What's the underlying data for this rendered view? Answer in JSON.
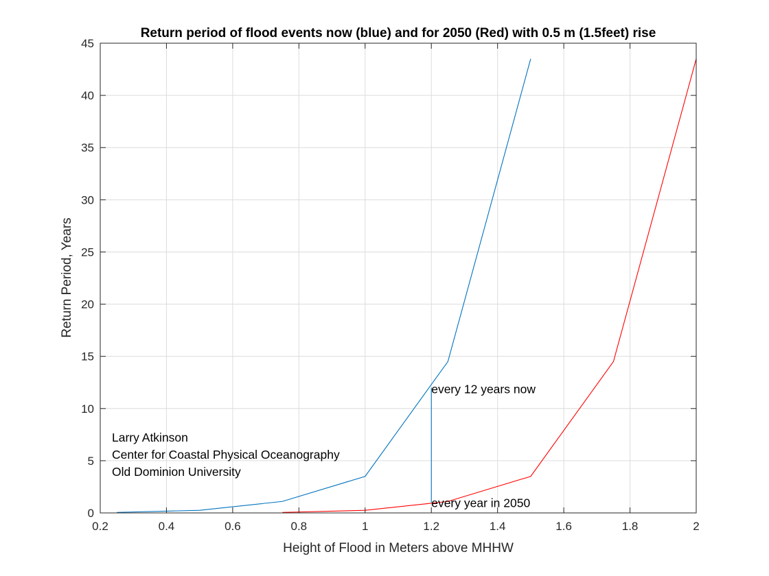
{
  "chart_data": {
    "type": "line",
    "title": "Return period of flood events now (blue) and for 2050 (Red) with 0.5 m (1.5feet) rise",
    "xlabel": "Height of Flood in Meters above MHHW",
    "ylabel": "Return Period, Years",
    "xlim": [
      0.2,
      2
    ],
    "ylim": [
      0,
      45
    ],
    "xticks": [
      0.2,
      0.4,
      0.6,
      0.8,
      1,
      1.2,
      1.4,
      1.6,
      1.8,
      2
    ],
    "xtick_labels": [
      "0.2",
      "0.4",
      "0.6",
      "0.8",
      "1",
      "1.2",
      "1.4",
      "1.6",
      "1.8",
      "2"
    ],
    "yticks": [
      0,
      5,
      10,
      15,
      20,
      25,
      30,
      35,
      40,
      45
    ],
    "ytick_labels": [
      "0",
      "5",
      "10",
      "15",
      "20",
      "25",
      "30",
      "35",
      "40",
      "45"
    ],
    "grid": true,
    "colors": {
      "now": "#0072BD",
      "future": "#FF0000",
      "axis": "#262626",
      "grid": "#dcdcdc"
    },
    "series": [
      {
        "color": "#0072BD",
        "x": [
          0.25,
          0.5,
          0.75,
          1.0,
          1.25,
          1.5
        ],
        "y": [
          0.05,
          0.25,
          1.1,
          3.5,
          14.5,
          43.5
        ]
      },
      {
        "color": "#FF0000",
        "x": [
          0.75,
          1.0,
          1.25,
          1.5,
          1.75,
          2.0
        ],
        "y": [
          0.05,
          0.25,
          1.1,
          3.5,
          14.5,
          43.5
        ]
      }
    ],
    "reference_line": {
      "color": "#0072BD",
      "x": 1.2,
      "y": [
        1.0,
        12.0
      ]
    },
    "annotations": [
      {
        "text": "every 12 years now",
        "x": 1.2,
        "y": 11.8
      },
      {
        "text": "every year in 2050",
        "x": 1.2,
        "y": 0.9
      }
    ],
    "credit_lines": [
      "Larry Atkinson",
      "Center for Coastal Physical Oceanography",
      "Old Dominion University"
    ]
  }
}
